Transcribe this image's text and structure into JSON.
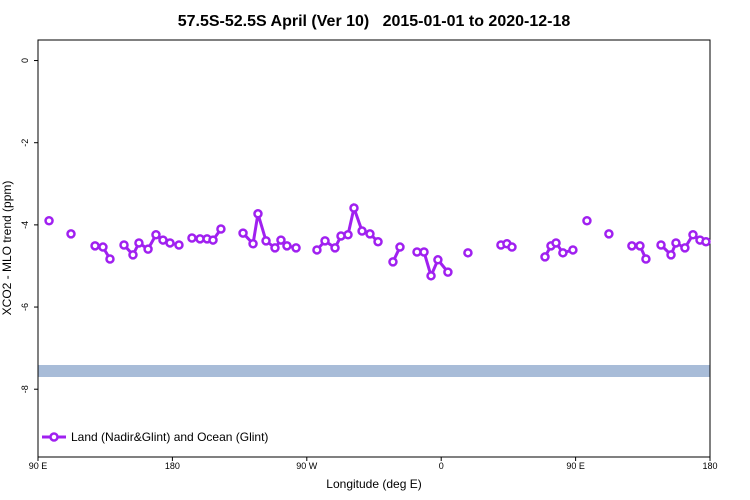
{
  "chart_data": {
    "type": "line",
    "title": "57.5S-52.5S April (Ver 10)   2015-01-01 to 2020-12-18",
    "xlabel": "Longitude (deg E)",
    "ylabel": "XCO2 - MLO trend (ppm)",
    "xlim": [
      90,
      540
    ],
    "ylim": [
      -9.65,
      0.5
    ],
    "xticks": [
      {
        "value": 90,
        "label": "90 E"
      },
      {
        "value": 180,
        "label": "180"
      },
      {
        "value": 270,
        "label": "90 W"
      },
      {
        "value": 360,
        "label": "0"
      },
      {
        "value": 450,
        "label": "90 E"
      },
      {
        "value": 540,
        "label": "180"
      }
    ],
    "yticks": [
      0,
      -2,
      -4,
      -6,
      -8
    ],
    "legend": "bottom-left",
    "series": [
      {
        "name": "Land (Nadir&Glint) and Ocean (Glint)",
        "color": "#a020f0",
        "x": [
          97.4,
          null,
          112.1,
          null,
          128.2,
          133.5,
          138.2,
          null,
          147.6,
          153.6,
          157.6,
          163.7,
          169.0,
          173.7,
          178.4,
          184.4,
          null,
          193.1,
          198.5,
          203.2,
          207.2,
          212.5,
          null,
          227.3,
          234.0,
          237.3,
          242.7,
          248.7,
          252.7,
          256.7,
          262.8,
          null,
          276.8,
          282.2,
          288.9,
          292.9,
          297.6,
          301.6,
          307.0,
          312.3,
          317.7,
          null,
          327.7,
          332.4,
          null,
          343.8,
          348.5,
          353.2,
          357.8,
          364.5,
          null,
          377.9,
          null,
          400.0,
          404.0,
          407.4,
          null,
          429.5,
          433.5,
          436.9,
          441.5,
          448.2,
          null,
          457.6,
          null,
          472.3,
          null,
          487.7,
          493.1,
          497.1,
          null,
          507.2,
          513.9,
          517.2,
          523.2,
          528.6,
          533.3,
          537.3
        ],
        "values": [
          -3.9,
          null,
          -4.22,
          null,
          -4.51,
          -4.54,
          -4.83,
          null,
          -4.49,
          -4.73,
          -4.44,
          -4.59,
          -4.24,
          -4.37,
          -4.44,
          -4.49,
          null,
          -4.32,
          -4.34,
          -4.34,
          -4.37,
          -4.1,
          null,
          -4.2,
          -4.46,
          -3.73,
          -4.39,
          -4.56,
          -4.37,
          -4.51,
          -4.56,
          null,
          -4.61,
          -4.39,
          -4.56,
          -4.27,
          -4.24,
          -3.59,
          -4.15,
          -4.22,
          -4.41,
          null,
          -4.9,
          -4.54,
          null,
          -4.66,
          -4.66,
          -5.24,
          -4.85,
          -5.15,
          null,
          -4.68,
          null,
          -4.49,
          -4.46,
          -4.54,
          null,
          -4.78,
          -4.51,
          -4.44,
          -4.68,
          -4.61,
          null,
          -3.9,
          null,
          -4.22,
          null,
          -4.51,
          -4.51,
          -4.83,
          null,
          -4.49,
          -4.73,
          -4.44,
          -4.56,
          -4.24,
          -4.37,
          -4.41
        ]
      }
    ]
  }
}
